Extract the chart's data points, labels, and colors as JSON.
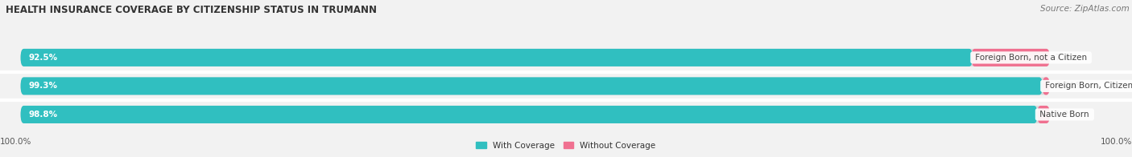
{
  "title": "HEALTH INSURANCE COVERAGE BY CITIZENSHIP STATUS IN TRUMANN",
  "source": "Source: ZipAtlas.com",
  "categories": [
    "Native Born",
    "Foreign Born, Citizen",
    "Foreign Born, not a Citizen"
  ],
  "with_coverage": [
    98.8,
    99.3,
    92.5
  ],
  "without_coverage": [
    1.2,
    0.71,
    7.6
  ],
  "with_coverage_color": "#30bfc0",
  "without_coverage_color": "#f07090",
  "background_color": "#f2f2f2",
  "bar_background_color": "#dcdcdc",
  "title_fontsize": 8.5,
  "label_fontsize": 7.5,
  "tick_fontsize": 7.5,
  "source_fontsize": 7.5,
  "legend_fontsize": 7.5,
  "bar_height": 0.62,
  "xlim": [
    0,
    100
  ],
  "row_gap_color": "#ffffff"
}
